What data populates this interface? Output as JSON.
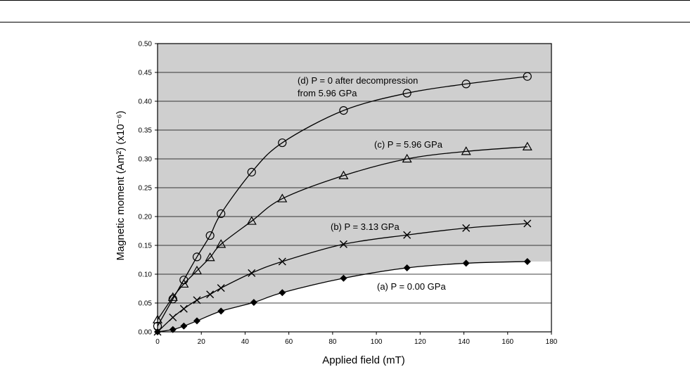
{
  "chart_data": {
    "type": "line",
    "xlabel": "Applied field (mT)",
    "ylabel": "Magnetic moment (Am²) (x10⁻⁶)",
    "xlim": [
      0,
      180
    ],
    "ylim": [
      0,
      0.5
    ],
    "x_ticks": [
      "0",
      "20",
      "40",
      "60",
      "80",
      "100",
      "120",
      "140",
      "160",
      "180"
    ],
    "y_ticks": [
      "0.00",
      "0.05",
      "0.10",
      "0.15",
      "0.20",
      "0.25",
      "0.30",
      "0.35",
      "0.40",
      "0.45",
      "0.50"
    ],
    "grid": "horizontal",
    "background": "#cfcfcf",
    "series": [
      {
        "label_lines": [
          "(a) P = 0.00 GPa"
        ],
        "marker": "diamond",
        "x": [
          0,
          7,
          12,
          18,
          29,
          44,
          57,
          85,
          114,
          141,
          169
        ],
        "y": [
          0.0,
          0.004,
          0.01,
          0.019,
          0.036,
          0.051,
          0.068,
          0.093,
          0.111,
          0.119,
          0.122
        ]
      },
      {
        "label_lines": [
          "(b) P = 3.13 GPa"
        ],
        "marker": "x",
        "x": [
          0,
          7,
          12,
          18,
          24,
          29,
          43,
          57,
          85,
          114,
          141,
          169
        ],
        "y": [
          0.0,
          0.025,
          0.04,
          0.055,
          0.065,
          0.076,
          0.102,
          0.122,
          0.152,
          0.168,
          0.18,
          0.188
        ]
      },
      {
        "label_lines": [
          "(c) P = 5.96 GPa"
        ],
        "marker": "triangle",
        "x": [
          0,
          7,
          12,
          18,
          24,
          29,
          43,
          57,
          85,
          114,
          141,
          169
        ],
        "y": [
          0.021,
          0.06,
          0.083,
          0.106,
          0.129,
          0.152,
          0.192,
          0.231,
          0.271,
          0.3,
          0.313,
          0.321
        ]
      },
      {
        "label_lines": [
          "(d) P = 0 after decompression",
          "from 5.96 GPa"
        ],
        "marker": "circle",
        "x": [
          0,
          7,
          12,
          18,
          24,
          29,
          43,
          57,
          85,
          114,
          141,
          169
        ],
        "y": [
          0.01,
          0.057,
          0.09,
          0.13,
          0.167,
          0.205,
          0.277,
          0.328,
          0.384,
          0.414,
          0.43,
          0.443
        ]
      }
    ]
  }
}
